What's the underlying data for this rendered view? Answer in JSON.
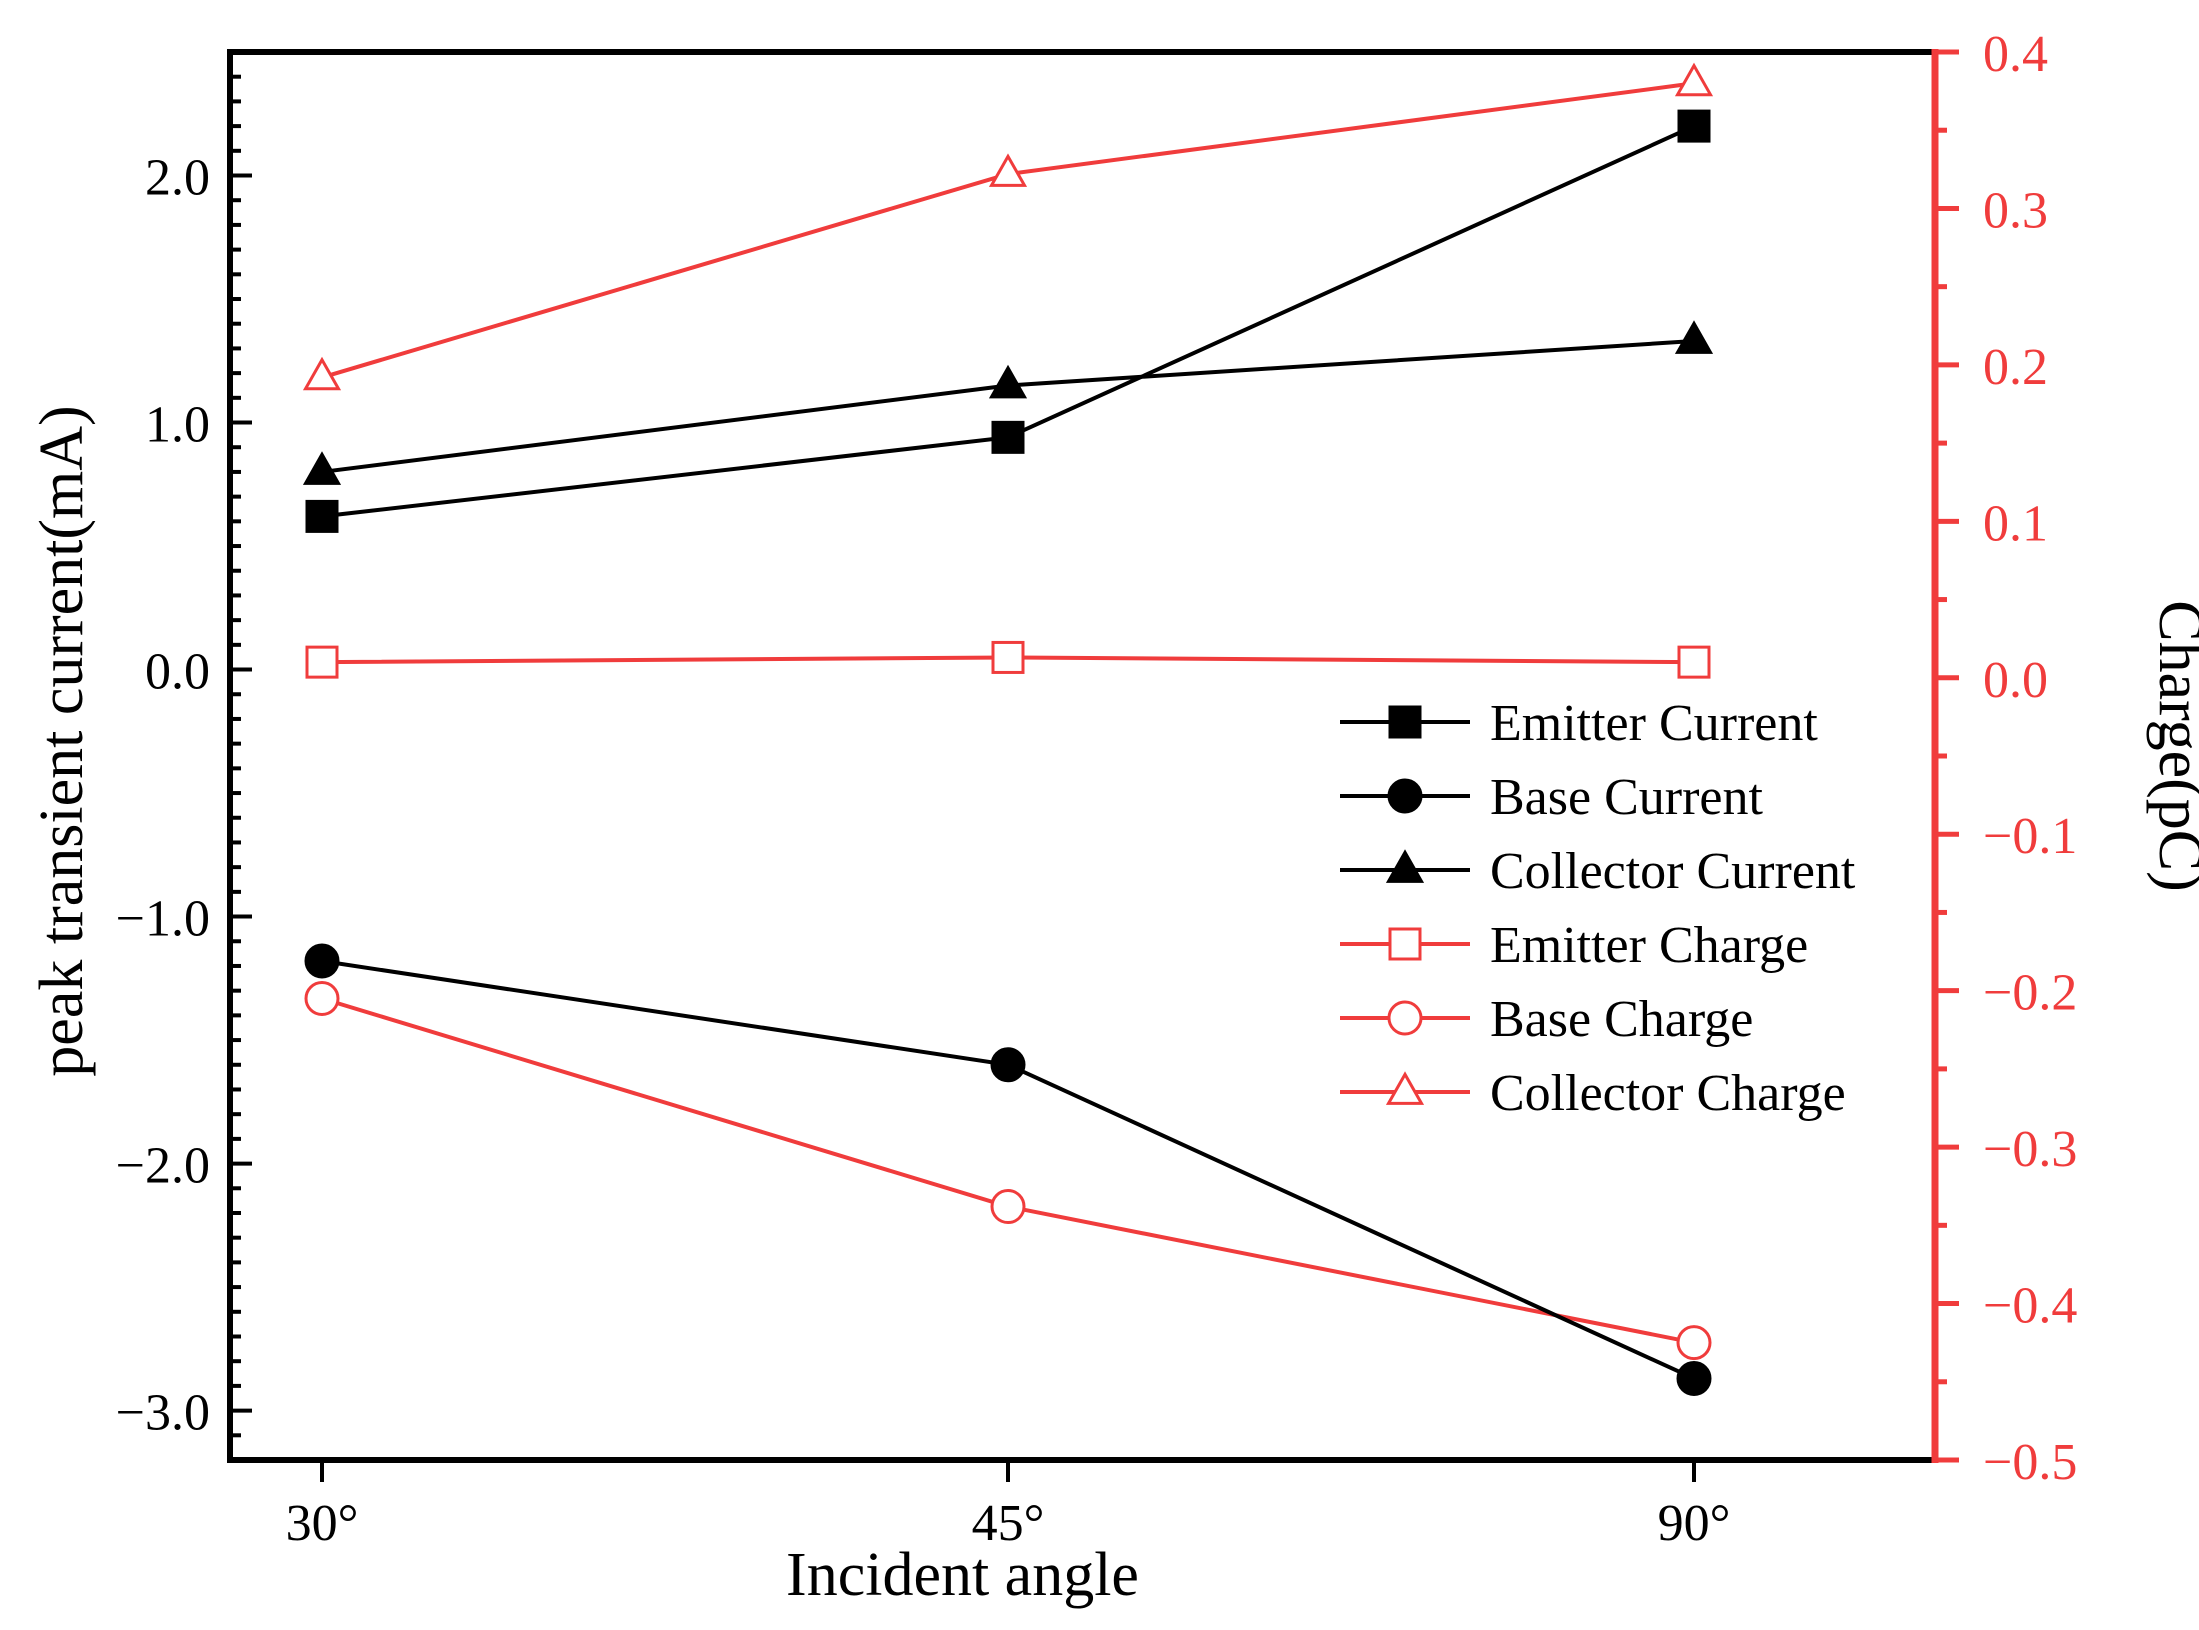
{
  "chart_data": {
    "type": "line",
    "categories": [
      "30°",
      "45°",
      "90°"
    ],
    "xlabel": "Incident angle",
    "ylabel": "peak transient current(mA)",
    "y2label": "Charge(pC)",
    "ylim": [
      -3.2,
      2.5
    ],
    "y2lim": [
      -0.5,
      0.4
    ],
    "yticks": [
      2.0,
      1.0,
      0.0,
      -1.0,
      -2.0,
      -3.0
    ],
    "ytick_labels": [
      "2.0",
      "1.0",
      "0.0",
      "−1.0",
      "−2.0",
      "−3.0"
    ],
    "y2ticks": [
      0.4,
      0.3,
      0.2,
      0.1,
      0.0,
      -0.1,
      -0.2,
      -0.3,
      -0.4,
      -0.5
    ],
    "y2tick_labels": [
      "0.4",
      "0.3",
      "0.2",
      "0.1",
      "0.0",
      "−0.1",
      "−0.2",
      "−0.3",
      "−0.4",
      "−0.5"
    ],
    "series": [
      {
        "name": "Emitter Current",
        "axis": "left",
        "color": "#000000",
        "marker": "square",
        "filled": true,
        "values": [
          0.62,
          0.94,
          2.2
        ]
      },
      {
        "name": "Base Current",
        "axis": "left",
        "color": "#000000",
        "marker": "circle",
        "filled": true,
        "values": [
          -1.18,
          -1.6,
          -2.87
        ]
      },
      {
        "name": "Collector Current",
        "axis": "left",
        "color": "#000000",
        "marker": "triangle",
        "filled": true,
        "values": [
          0.8,
          1.15,
          1.33
        ]
      },
      {
        "name": "Emitter Charge",
        "axis": "right",
        "color": "#f03c3c",
        "marker": "square",
        "filled": false,
        "values": [
          0.01,
          0.013,
          0.01
        ]
      },
      {
        "name": "Base Charge",
        "axis": "right",
        "color": "#f03c3c",
        "marker": "circle",
        "filled": false,
        "values": [
          -0.205,
          -0.338,
          -0.425
        ]
      },
      {
        "name": "Collector Charge",
        "axis": "right",
        "color": "#f03c3c",
        "marker": "triangle",
        "filled": false,
        "values": [
          0.192,
          0.322,
          0.38
        ]
      }
    ],
    "legend_position": "right-center",
    "grid": false
  }
}
